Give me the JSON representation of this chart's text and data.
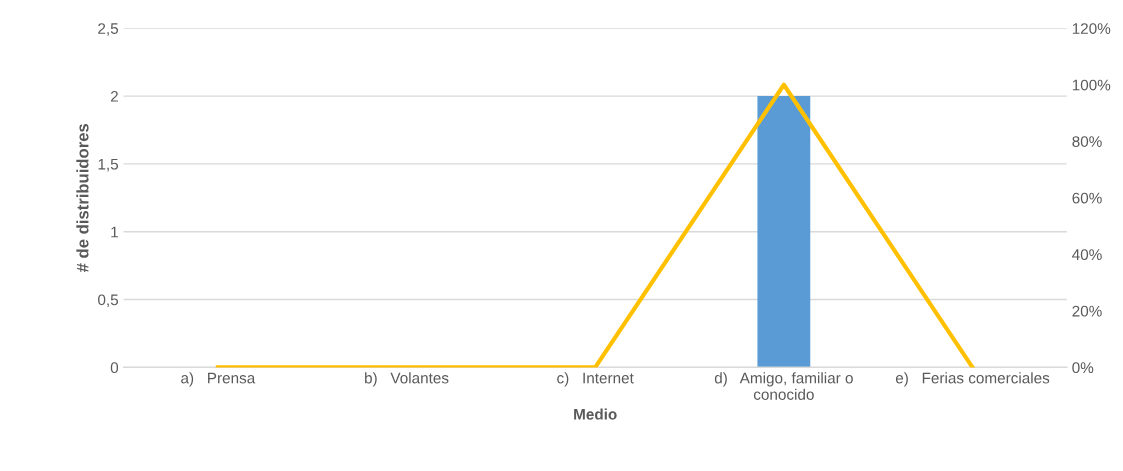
{
  "chart_data": {
    "type": "bar",
    "xlabel": "Medio",
    "ylabel": "# de distribuidores",
    "categories": [
      "a)   Prensa",
      "b)   Volantes",
      "c)   Internet",
      "d)   Amigo, familiar o\nconocido",
      "e)   Ferias comerciales"
    ],
    "series": [
      {
        "color": "#5b9bd5",
        "values": [
          0,
          0,
          0,
          2,
          0
        ]
      },
      {
        "type": "line",
        "axis": "y2",
        "color": "#ffc000",
        "values": [
          0,
          0,
          0,
          100,
          0
        ]
      }
    ],
    "ylim": [
      0,
      2.5
    ],
    "yticks": [
      {
        "value": 0,
        "label": "0"
      },
      {
        "value": 0.5,
        "label": "0,5"
      },
      {
        "value": 1,
        "label": "1"
      },
      {
        "value": 1.5,
        "label": "1,5"
      },
      {
        "value": 2,
        "label": "2"
      },
      {
        "value": 2.5,
        "label": "2,5"
      }
    ],
    "y2lim": [
      0,
      120
    ],
    "y2ticks": [
      {
        "value": 0,
        "label": "0%"
      },
      {
        "value": 20,
        "label": "20%"
      },
      {
        "value": 40,
        "label": "40%"
      },
      {
        "value": 60,
        "label": "60%"
      },
      {
        "value": 80,
        "label": "80%"
      },
      {
        "value": 100,
        "label": "100%"
      },
      {
        "value": 120,
        "label": "120%"
      }
    ],
    "grid": "y",
    "legend": false
  }
}
